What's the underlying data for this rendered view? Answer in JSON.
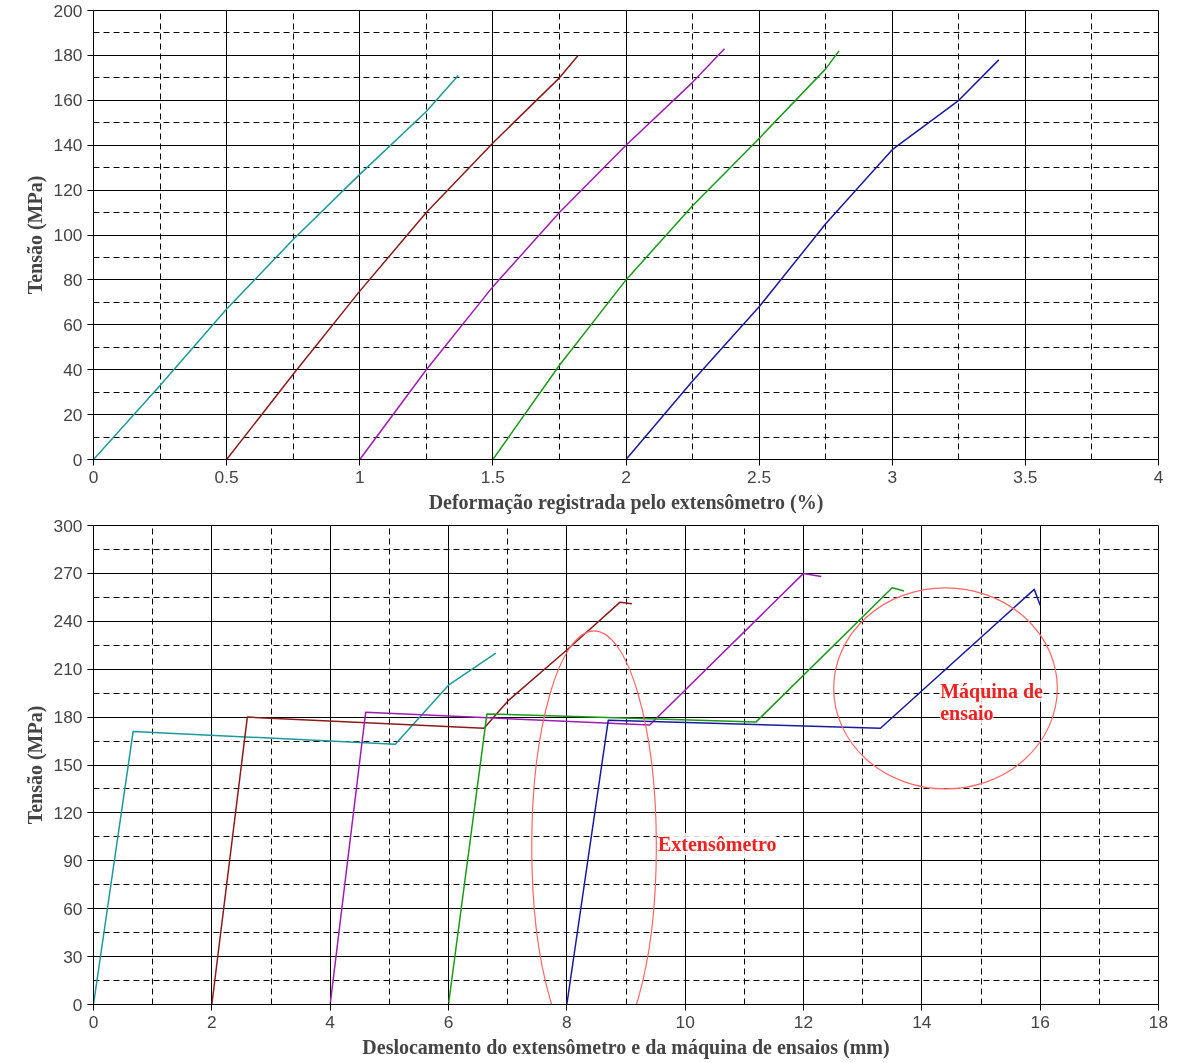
{
  "chart_data": [
    {
      "type": "line",
      "xlabel": "Deformação registrada pelo extensômetro (%)",
      "ylabel": "Tensão (MPa)",
      "xlim": [
        0,
        4
      ],
      "ylim": [
        0,
        200
      ],
      "xticks": [
        0,
        {
          "value": 0.5,
          "label": "0.5"
        },
        1,
        {
          "value": 1.5,
          "label": "1.5"
        },
        2,
        {
          "value": 2.5,
          "label": "2.5"
        },
        3,
        {
          "value": 3.5,
          "label": "3.5"
        },
        4
      ],
      "yticks": [
        0,
        20,
        40,
        60,
        80,
        100,
        120,
        140,
        160,
        180,
        200
      ],
      "grid": true,
      "marker": "none",
      "line_style": "solid",
      "series": [
        {
          "color": "#1a9a9a",
          "x": [
            0,
            0.25,
            0.5,
            0.75,
            1,
            1.25,
            1.37
          ],
          "values": [
            0,
            33,
            67,
            98,
            127,
            155,
            171
          ]
        },
        {
          "color": "#8b1a1a",
          "x": [
            0.5,
            0.75,
            1,
            1.25,
            1.5,
            1.75,
            1.82
          ],
          "values": [
            0,
            38,
            75,
            110,
            141,
            170,
            180
          ]
        },
        {
          "color": "#a01ab4",
          "x": [
            1,
            1.25,
            1.5,
            1.75,
            2,
            2.25,
            2.37
          ],
          "values": [
            0,
            40,
            77,
            110,
            140,
            168,
            183
          ]
        },
        {
          "color": "#1a9a1a",
          "x": [
            1.5,
            1.75,
            2,
            2.25,
            2.5,
            2.75,
            2.8
          ],
          "values": [
            0,
            42,
            80,
            113,
            143,
            174,
            182
          ]
        },
        {
          "color": "#1a1aa0",
          "x": [
            2,
            2.25,
            2.5,
            2.75,
            3,
            3.25,
            3.4
          ],
          "values": [
            0,
            35,
            68,
            105,
            138,
            160,
            178
          ]
        }
      ]
    },
    {
      "type": "line",
      "xlabel": "Deslocamento do extensômetro e da máquina de ensaios (mm)",
      "ylabel": "Tensão (MPa)",
      "xlim": [
        0,
        18
      ],
      "ylim": [
        0,
        300
      ],
      "xticks": [
        0,
        2,
        4,
        6,
        8,
        10,
        12,
        14,
        16,
        18
      ],
      "yticks": [
        0,
        30,
        60,
        90,
        120,
        150,
        180,
        210,
        240,
        270,
        300
      ],
      "grid": true,
      "marker": "none",
      "line_style": "solid",
      "series": [
        {
          "color": "#1a9a9a",
          "x": [
            0,
            0.67,
            5.1,
            6.0,
            6.8
          ],
          "values": [
            0,
            171,
            163,
            200,
            220
          ]
        },
        {
          "color": "#8b1a1a",
          "x": [
            2,
            2.6,
            6.6,
            7,
            8,
            8.9,
            9.1
          ],
          "values": [
            0,
            180,
            173,
            190,
            222,
            252,
            251
          ]
        },
        {
          "color": "#a01ab4",
          "x": [
            4,
            4.6,
            9.4,
            12,
            12.3
          ],
          "values": [
            0,
            183,
            175,
            270,
            268
          ]
        },
        {
          "color": "#1a9a1a",
          "x": [
            6,
            6.65,
            11.2,
            13.5,
            13.7
          ],
          "values": [
            0,
            182,
            177,
            261,
            259
          ]
        },
        {
          "color": "#1a1aa0",
          "x": [
            8,
            8.7,
            13.3,
            15.9,
            16
          ],
          "values": [
            0,
            178,
            173,
            260,
            250
          ]
        }
      ],
      "annotations": [
        "Extensômetro",
        "Máquina de\nensaio"
      ]
    }
  ]
}
